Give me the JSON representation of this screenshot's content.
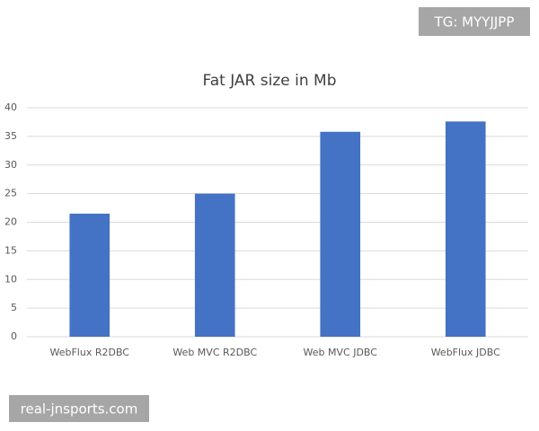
{
  "watermarks": {
    "top": "TG: MYYJJPP",
    "bottom": "real-jnsports.com"
  },
  "chart_data": {
    "type": "bar",
    "title": "Fat JAR size in Mb",
    "categories": [
      "WebFlux R2DBC",
      "Web MVC R2DBC",
      "Web MVC JDBC",
      "WebFlux JDBC"
    ],
    "values": [
      21.5,
      25,
      35.8,
      37.6
    ],
    "color": "#4472c4",
    "ylim": [
      0,
      40
    ],
    "yticks": [
      0,
      5,
      10,
      15,
      20,
      25,
      30,
      35,
      40
    ],
    "grid": true
  }
}
